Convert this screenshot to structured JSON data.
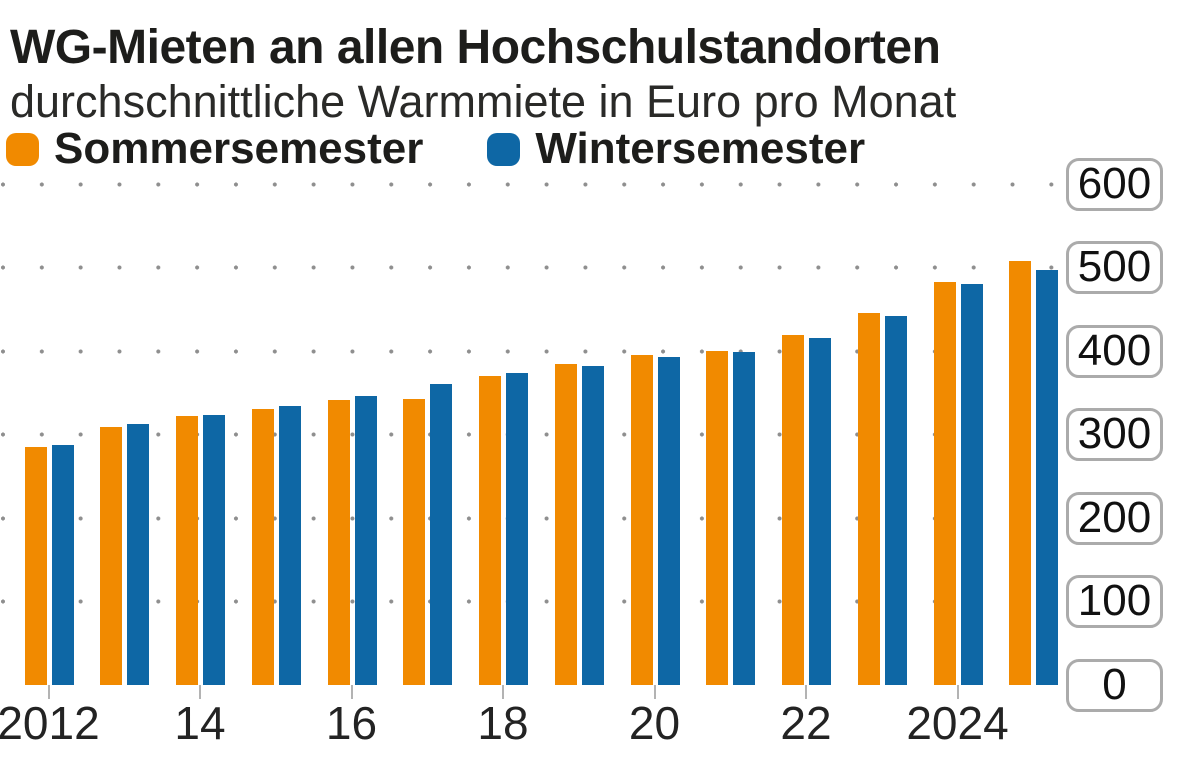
{
  "header": {
    "title": "WG-Mieten an allen Hochschulstandorten",
    "subtitle": "durchschnittliche Warmmiete in Euro pro Monat"
  },
  "legend": {
    "items": [
      {
        "id": "sommersemester",
        "label": "Sommersemester",
        "color": "#F18A00"
      },
      {
        "id": "wintersemester",
        "label": "Wintersemester",
        "color": "#0E67A5"
      }
    ]
  },
  "chart_data": {
    "type": "bar",
    "title": "WG-Mieten an allen Hochschulstandorten",
    "subtitle": "durchschnittliche Warmmiete in Euro pro Monat",
    "unit": "Euro pro Monat",
    "categories": [
      2012,
      2013,
      2014,
      2015,
      2016,
      2017,
      2018,
      2019,
      2020,
      2021,
      2022,
      2023,
      2024,
      2025
    ],
    "series": [
      {
        "name": "Sommersemester",
        "color": "#F18A00",
        "values": [
          285,
          309,
          322,
          330,
          341,
          343,
          370,
          385,
          395,
          400,
          419,
          445,
          483,
          508
        ]
      },
      {
        "name": "Wintersemester",
        "color": "#0E67A5",
        "values": [
          288,
          313,
          323,
          334,
          346,
          360,
          374,
          382,
          393,
          399,
          415,
          442,
          480,
          497
        ]
      }
    ],
    "ylim": [
      0,
      600
    ],
    "y_ticks": [
      600,
      500,
      400,
      300,
      200,
      100,
      0
    ],
    "x_ticks": [
      {
        "year": 2012,
        "label": "2012"
      },
      {
        "year": 2014,
        "label": "14"
      },
      {
        "year": 2016,
        "label": "16"
      },
      {
        "year": 2018,
        "label": "18"
      },
      {
        "year": 2020,
        "label": "20"
      },
      {
        "year": 2022,
        "label": "22"
      },
      {
        "year": 2024,
        "label": "2024"
      }
    ],
    "grid": "dotted-horizontal",
    "legend_position": "top"
  }
}
